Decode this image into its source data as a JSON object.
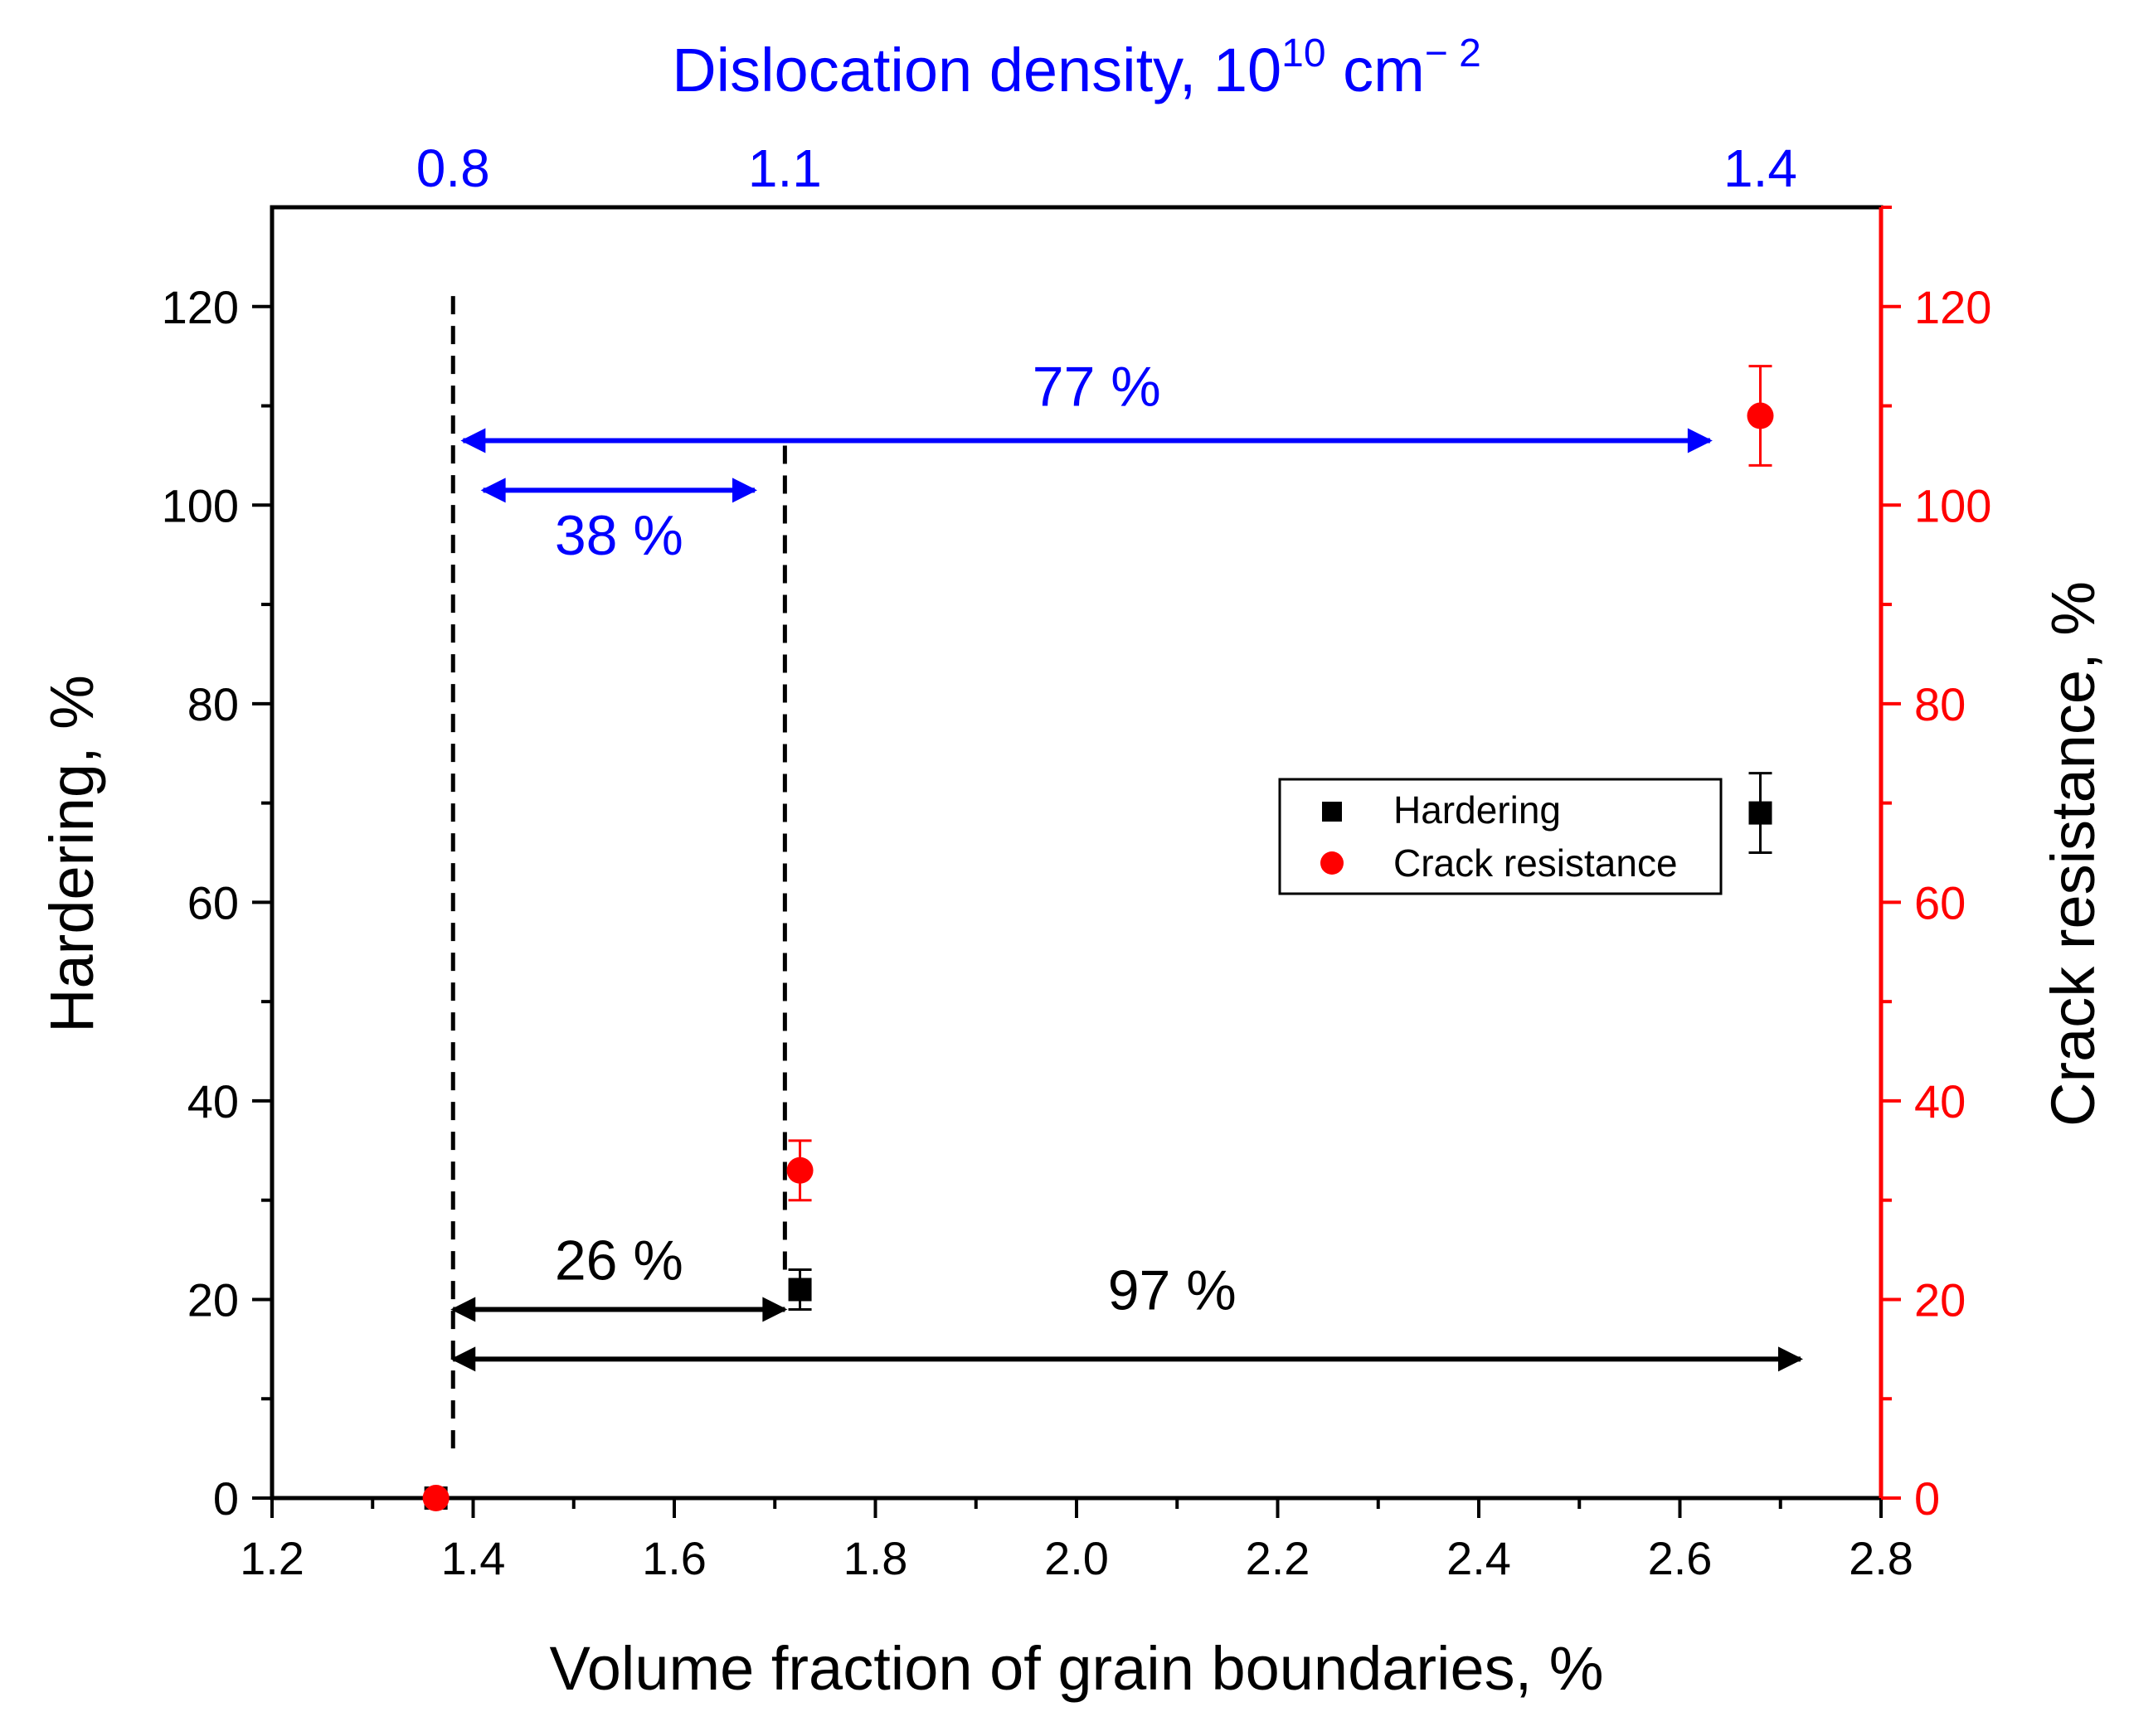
{
  "chart_data": {
    "type": "scatter",
    "title": "",
    "xlabel": "Volume fraction of grain boundaries, %",
    "ylabel_left": "Hardering, %",
    "ylabel_right": "Crack resistance, %",
    "top_axis": {
      "label_prefix": "Dislocation density, 10",
      "label_exponent": "10",
      "label_unit": " cm",
      "label_unit_exponent": "− 2",
      "ticks": [
        {
          "label": "0.8",
          "at_x": 1.38
        },
        {
          "label": "1.1",
          "at_x": 1.71
        },
        {
          "label": "1.4",
          "at_x": 2.68
        }
      ]
    },
    "xlim": [
      1.2,
      2.8
    ],
    "ylim": [
      0,
      130
    ],
    "x_ticks": [
      {
        "value": 1.2,
        "label": "1.2"
      },
      {
        "value": 1.4,
        "label": "1.4"
      },
      {
        "value": 1.6,
        "label": "1.6"
      },
      {
        "value": 1.8,
        "label": "1.8"
      },
      {
        "value": 2.0,
        "label": "2.0"
      },
      {
        "value": 2.2,
        "label": "2.2"
      },
      {
        "value": 2.4,
        "label": "2.4"
      },
      {
        "value": 2.6,
        "label": "2.6"
      },
      {
        "value": 2.8,
        "label": "2.8"
      }
    ],
    "y_ticks": [
      {
        "value": 0,
        "label": "0"
      },
      {
        "value": 20,
        "label": "20"
      },
      {
        "value": 40,
        "label": "40"
      },
      {
        "value": 60,
        "label": "60"
      },
      {
        "value": 80,
        "label": "80"
      },
      {
        "value": 100,
        "label": "100"
      },
      {
        "value": 120,
        "label": "120"
      }
    ],
    "series": [
      {
        "name": "Hardering",
        "marker": "square",
        "color": "#000000",
        "axis": "left",
        "points": [
          {
            "x": 1.363,
            "y": 0,
            "err": 0
          },
          {
            "x": 1.725,
            "y": 21,
            "err": 2
          },
          {
            "x": 2.68,
            "y": 69,
            "err": 4
          }
        ]
      },
      {
        "name": "Crack resistance",
        "marker": "circle",
        "color": "#ff0000",
        "axis": "right",
        "points": [
          {
            "x": 1.363,
            "y": 0,
            "err": 0
          },
          {
            "x": 1.725,
            "y": 33,
            "err": 3
          },
          {
            "x": 2.68,
            "y": 109,
            "err": 5
          }
        ]
      }
    ],
    "reference_lines": [
      {
        "x": 1.38,
        "y_from": 5,
        "y_to": 122
      },
      {
        "x": 1.71,
        "y_from": 23,
        "y_to": 106
      }
    ],
    "annotations": [
      {
        "text": "77 %",
        "color": "#0000ff",
        "x1": 1.39,
        "x2": 2.63,
        "arrow_y": 106.5,
        "text_x": 2.02,
        "text_y": 110
      },
      {
        "text": "38 %",
        "color": "#0000ff",
        "x1": 1.41,
        "x2": 1.68,
        "arrow_y": 101.5,
        "text_x": 1.545,
        "text_y": 95
      },
      {
        "text": "26 %",
        "color": "#000000",
        "x1": 1.38,
        "x2": 1.71,
        "arrow_y": 19,
        "text_x": 1.545,
        "text_y": 22
      },
      {
        "text": "97 %",
        "color": "#000000",
        "x1": 1.38,
        "x2": 2.72,
        "arrow_y": 14,
        "text_x": 2.095,
        "text_y": 19
      }
    ],
    "legend": {
      "position": "center-right",
      "entries": [
        "Hardering",
        "Crack resistance"
      ]
    },
    "colors": {
      "left_axis": "#000000",
      "right_axis": "#ff0000",
      "top_axis": "#0000ff"
    }
  }
}
